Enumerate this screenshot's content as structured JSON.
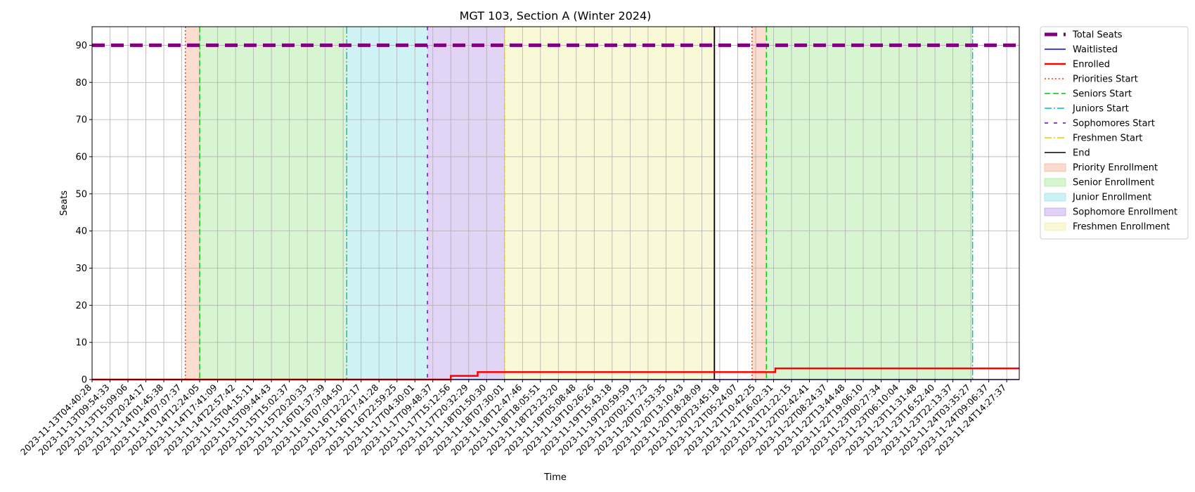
{
  "chart_data": {
    "type": "line",
    "title": "MGT 103, Section A (Winter 2024)",
    "xlabel": "Time",
    "ylabel": "Seats",
    "ylim": [
      0,
      95
    ],
    "yticks": [
      0,
      10,
      20,
      30,
      40,
      50,
      60,
      70,
      80,
      90
    ],
    "grid": true,
    "legend_position": "outside right, top",
    "x_tick_labels": [
      "2023-11-13T04:40:28",
      "2023-11-13T09:54:33",
      "2023-11-13T15:09:06",
      "2023-11-13T20:24:17",
      "2023-11-14T01:45:38",
      "2023-11-14T07:07:37",
      "2023-11-14T12:24:05",
      "2023-11-14T17:41:09",
      "2023-11-14T22:57:42",
      "2023-11-15T04:15:11",
      "2023-11-15T09:44:43",
      "2023-11-15T15:02:37",
      "2023-11-15T20:20:33",
      "2023-11-16T01:37:39",
      "2023-11-16T07:04:50",
      "2023-11-16T12:22:17",
      "2023-11-16T17:41:28",
      "2023-11-16T22:59:25",
      "2023-11-17T04:30:01",
      "2023-11-17T09:48:37",
      "2023-11-17T15:12:56",
      "2023-11-17T20:32:29",
      "2023-11-18T01:50:30",
      "2023-11-18T07:30:01",
      "2023-11-18T12:47:46",
      "2023-11-18T18:05:51",
      "2023-11-18T23:23:20",
      "2023-11-19T05:08:48",
      "2023-11-19T10:26:26",
      "2023-11-19T15:43:18",
      "2023-11-19T20:59:59",
      "2023-11-20T02:17:23",
      "2023-11-20T07:53:35",
      "2023-11-20T13:10:43",
      "2023-11-20T18:28:09",
      "2023-11-20T23:45:18",
      "2023-11-21T05:24:07",
      "2023-11-21T10:42:25",
      "2023-11-21T16:02:31",
      "2023-11-21T21:22:15",
      "2023-11-22T02:42:41",
      "2023-11-22T08:24:37",
      "2023-11-22T13:44:48",
      "2023-11-22T19:06:10",
      "2023-11-23T00:27:34",
      "2023-11-23T06:10:04",
      "2023-11-23T11:31:48",
      "2023-11-23T16:52:40",
      "2023-11-23T22:13:37",
      "2023-11-24T03:35:27",
      "2023-11-24T09:06:37",
      "2023-11-24T14:27:37"
    ],
    "series": [
      {
        "name": "Total Seats",
        "color": "#800080",
        "style": "dashed-thick",
        "points": [
          [
            0,
            90
          ],
          [
            51.7,
            90
          ]
        ]
      },
      {
        "name": "Waitlisted",
        "color": "#0000ff",
        "style": "solid",
        "points": [
          [
            0,
            0
          ],
          [
            51.7,
            0
          ]
        ]
      },
      {
        "name": "Enrolled",
        "color": "#ff0000",
        "style": "solid-thick",
        "points": [
          [
            0,
            0
          ],
          [
            20.0,
            0
          ],
          [
            20.0,
            1
          ],
          [
            21.5,
            1
          ],
          [
            21.5,
            2
          ],
          [
            38.1,
            2
          ],
          [
            38.1,
            3
          ],
          [
            51.7,
            3
          ]
        ]
      }
    ],
    "vlines": [
      {
        "name": "Priorities Start",
        "color": "#ff3300",
        "style": "dotted",
        "x": [
          5.2,
          36.8
        ]
      },
      {
        "name": "Seniors Start",
        "color": "#00cc00",
        "style": "dashed",
        "x": [
          6.0,
          37.6
        ]
      },
      {
        "name": "Juniors Start",
        "color": "#00bfbf",
        "style": "dashdot",
        "x": [
          14.2,
          49.1
        ]
      },
      {
        "name": "Sophomores Start",
        "color": "#6600cc",
        "style": "loosedash",
        "x": [
          18.7
        ]
      },
      {
        "name": "Freshmen Start",
        "color": "#e6c800",
        "style": "dashdot",
        "x": [
          23.0
        ]
      },
      {
        "name": "End",
        "color": "#000000",
        "style": "solid",
        "x": [
          34.7
        ]
      }
    ],
    "spans": [
      {
        "name": "Priority Enrollment",
        "color": "#f4a582",
        "ranges": [
          [
            5.2,
            6.0
          ],
          [
            36.8,
            37.6
          ]
        ]
      },
      {
        "name": "Senior Enrollment",
        "color": "#99e68a",
        "ranges": [
          [
            6.0,
            14.2
          ],
          [
            37.6,
            49.1
          ]
        ]
      },
      {
        "name": "Junior Enrollment",
        "color": "#80dfe6",
        "ranges": [
          [
            14.2,
            18.7
          ]
        ]
      },
      {
        "name": "Sophomore Enrollment",
        "color": "#b38ee6",
        "ranges": [
          [
            18.7,
            23.0
          ]
        ]
      },
      {
        "name": "Freshmen Enrollment",
        "color": "#eeee99",
        "ranges": [
          [
            23.0,
            34.7
          ]
        ]
      }
    ],
    "legend": [
      {
        "label": "Total Seats",
        "kind": "line",
        "ref": "Total Seats"
      },
      {
        "label": "Waitlisted",
        "kind": "line",
        "ref": "Waitlisted"
      },
      {
        "label": "Enrolled",
        "kind": "line",
        "ref": "Enrolled"
      },
      {
        "label": "Priorities Start",
        "kind": "line",
        "ref": "Priorities Start"
      },
      {
        "label": "Seniors Start",
        "kind": "line",
        "ref": "Seniors Start"
      },
      {
        "label": "Juniors Start",
        "kind": "line",
        "ref": "Juniors Start"
      },
      {
        "label": "Sophomores Start",
        "kind": "line",
        "ref": "Sophomores Start"
      },
      {
        "label": "Freshmen Start",
        "kind": "line",
        "ref": "Freshmen Start"
      },
      {
        "label": "End",
        "kind": "line",
        "ref": "End"
      },
      {
        "label": "Priority Enrollment",
        "kind": "patch",
        "ref": "Priority Enrollment"
      },
      {
        "label": "Senior Enrollment",
        "kind": "patch",
        "ref": "Senior Enrollment"
      },
      {
        "label": "Junior Enrollment",
        "kind": "patch",
        "ref": "Junior Enrollment"
      },
      {
        "label": "Sophomore Enrollment",
        "kind": "patch",
        "ref": "Sophomore Enrollment"
      },
      {
        "label": "Freshmen Enrollment",
        "kind": "patch",
        "ref": "Freshmen Enrollment"
      }
    ]
  }
}
